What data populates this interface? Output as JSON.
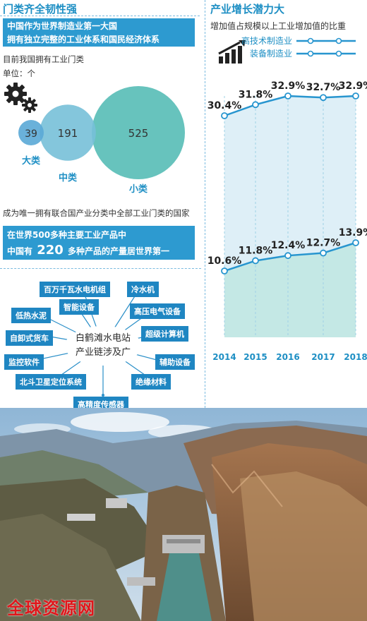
{
  "left": {
    "section_title": "门类齐全韧性强",
    "banner1_line1": "中国作为世界制造业第一大国",
    "banner1_line2": "拥有独立完整的工业体系和国民经济体系",
    "note1": "目前我国拥有工业门类",
    "note2": "单位：个",
    "icon": "gears-icon",
    "statement": "成为唯一拥有联合国产业分类中全部工业门类的国家",
    "banner2_line1": "在世界500多种主要工业产品中",
    "banner2_line2_pre": "中国有",
    "banner2_line2_num": "220",
    "banner2_line2_post": "多种产品的产量居世界第一"
  },
  "right": {
    "section_title": "产业增长潜力大",
    "subtitle": "增加值占规模以上工业增加值的比重",
    "icon": "growth-chart-icon"
  },
  "hub": {
    "center_line1": "白鹤滩水电站",
    "center_line2": "产业链涉及广",
    "items": [
      "百万千瓦水电机组",
      "冷水机",
      "智能设备",
      "低热水泥",
      "高压电气设备",
      "自卸式货车",
      "超级计算机",
      "监控软件",
      "辅助设备",
      "北斗卫星定位系统",
      "绝缘材料",
      "高精度传感器"
    ]
  },
  "watermark": "全球资源网",
  "colors": {
    "accent": "#1e8fc4",
    "teal": "#3ab3b3",
    "line": "#2795cf"
  },
  "chart_data": [
    {
      "type": "bubble",
      "categories": [
        "大类",
        "中类",
        "小类"
      ],
      "values": [
        39,
        191,
        525
      ],
      "unit": "个"
    },
    {
      "type": "line",
      "title": "产业增长潜力大",
      "subtitle": "增加值占规模以上工业增加值的比重",
      "x": [
        "2014",
        "2015",
        "2016",
        "2017",
        "2018"
      ],
      "series": [
        {
          "name": "高技术制造业",
          "values": [
            10.6,
            11.8,
            12.4,
            12.7,
            13.9
          ],
          "labels": [
            "10.6%",
            "11.8%",
            "12.4%",
            "12.7%",
            "13.9%"
          ]
        },
        {
          "name": "装备制造业",
          "values": [
            30.4,
            31.8,
            32.9,
            32.7,
            32.9
          ],
          "labels": [
            "30.4%",
            "31.8%",
            "32.9%",
            "32.7%",
            "32.9%"
          ]
        }
      ],
      "unit": "%",
      "legend": "top-right",
      "grid": true
    }
  ]
}
